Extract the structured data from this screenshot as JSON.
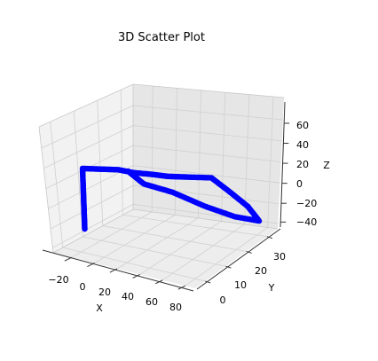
{
  "chart_data": {
    "type": "scatter",
    "title": "3D Scatter Plot",
    "xlabel": "X",
    "ylabel": "Y",
    "zlabel": "Z",
    "x_ticks": [
      "−20",
      "0",
      "20",
      "40",
      "60",
      "80"
    ],
    "y_ticks": [
      "0",
      "10",
      "20",
      "30"
    ],
    "z_ticks": [
      "60",
      "40",
      "20",
      "0",
      "−20",
      "−40"
    ],
    "xlim": [
      -30,
      90
    ],
    "ylim": [
      -5,
      35
    ],
    "zlim": [
      -50,
      70
    ],
    "grid": true,
    "point_color": "#0000ff",
    "series": [
      {
        "points": [
          [
            -5,
            -3,
            -20
          ],
          [
            -5,
            -3,
            -5
          ],
          [
            -5,
            -3,
            10
          ],
          [
            -5,
            -3,
            25
          ],
          [
            -5,
            -3,
            42
          ],
          [
            5,
            0,
            40
          ],
          [
            15,
            3,
            38
          ],
          [
            25,
            5,
            35
          ],
          [
            35,
            8,
            32
          ],
          [
            45,
            10,
            30
          ],
          [
            55,
            13,
            28
          ],
          [
            65,
            20,
            20
          ],
          [
            72,
            25,
            0
          ],
          [
            78,
            30,
            -20
          ],
          [
            82,
            33,
            -38
          ],
          [
            70,
            28,
            -30
          ],
          [
            55,
            22,
            -15
          ],
          [
            40,
            15,
            5
          ],
          [
            28,
            8,
            20
          ],
          [
            20,
            5,
            35
          ]
        ]
      }
    ]
  }
}
